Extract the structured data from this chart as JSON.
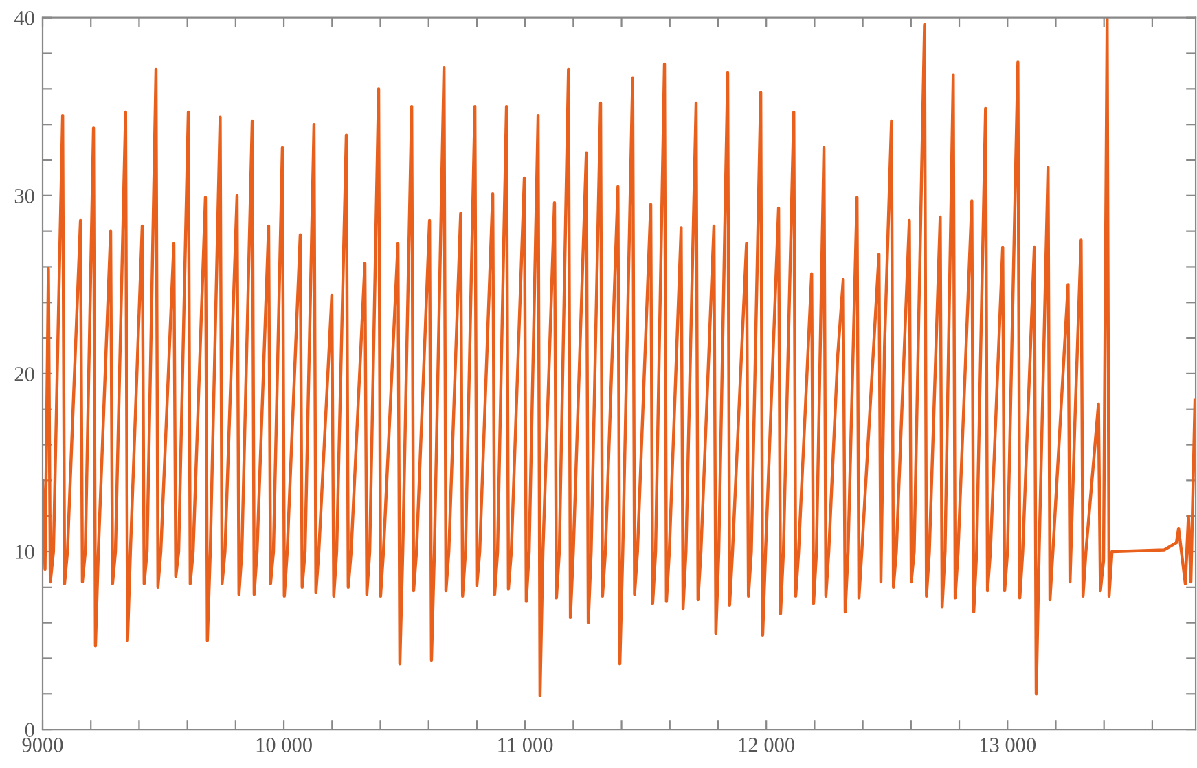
{
  "chart_data": {
    "type": "line",
    "xlim": [
      9000,
      13780
    ],
    "ylim": [
      0,
      40
    ],
    "xticks": [
      9000,
      {
        "value": 9200,
        "label": null
      },
      {
        "value": 9400,
        "label": null
      },
      {
        "value": 9600,
        "label": null
      },
      {
        "value": 9800,
        "label": null
      },
      {
        "value": 10000,
        "label": "10 000"
      },
      {
        "value": 10200,
        "label": null
      },
      {
        "value": 10400,
        "label": null
      },
      {
        "value": 10600,
        "label": null
      },
      {
        "value": 10800,
        "label": null
      },
      {
        "value": 11000,
        "label": "11 000"
      },
      {
        "value": 11200,
        "label": null
      },
      {
        "value": 11400,
        "label": null
      },
      {
        "value": 11600,
        "label": null
      },
      {
        "value": 11800,
        "label": null
      },
      {
        "value": 12000,
        "label": "12 000"
      },
      {
        "value": 12200,
        "label": null
      },
      {
        "value": 12400,
        "label": null
      },
      {
        "value": 12600,
        "label": null
      },
      {
        "value": 12800,
        "label": null
      },
      {
        "value": 13000,
        "label": "13 000"
      },
      {
        "value": 13200,
        "label": null
      },
      {
        "value": 13400,
        "label": null
      },
      {
        "value": 13600,
        "label": null
      }
    ],
    "yticks": [
      0,
      {
        "value": 2,
        "label": null
      },
      {
        "value": 4,
        "label": null
      },
      {
        "value": 6,
        "label": null
      },
      {
        "value": 8,
        "label": null
      },
      10,
      {
        "value": 12,
        "label": null
      },
      {
        "value": 14,
        "label": null
      },
      {
        "value": 16,
        "label": null
      },
      {
        "value": 18,
        "label": null
      },
      20,
      {
        "value": 22,
        "label": null
      },
      {
        "value": 24,
        "label": null
      },
      {
        "value": 26,
        "label": null
      },
      {
        "value": 28,
        "label": null
      },
      30,
      {
        "value": 32,
        "label": null
      },
      {
        "value": 34,
        "label": null
      },
      {
        "value": 36,
        "label": null
      },
      {
        "value": 38,
        "label": null
      },
      40
    ],
    "grid": false,
    "marker": "none",
    "line_style": "solid",
    "series": [
      {
        "color": "#e8601c",
        "x": [
          9000,
          9010,
          9024,
          9032,
          9045,
          9083,
          9091,
          9103,
          9157,
          9165,
          9177,
          9211,
          9219,
          9231,
          9282,
          9290,
          9302,
          9344,
          9352,
          9364,
          9413,
          9421,
          9433,
          9470,
          9478,
          9490,
          9544,
          9552,
          9564,
          9604,
          9612,
          9624,
          9675,
          9683,
          9695,
          9736,
          9744,
          9756,
          9806,
          9814,
          9826,
          9869,
          9877,
          9889,
          9937,
          9945,
          9957,
          9994,
          10002,
          10014,
          10068,
          10076,
          10088,
          10125,
          10133,
          10145,
          10199,
          10207,
          10219,
          10259,
          10267,
          10279,
          10336,
          10344,
          10356,
          10393,
          10401,
          10413,
          10473,
          10481,
          10493,
          10530,
          10538,
          10550,
          10604,
          10612,
          10624,
          10664,
          10672,
          10684,
          10733,
          10741,
          10753,
          10792,
          10800,
          10812,
          10866,
          10874,
          10886,
          10923,
          10931,
          10943,
          10997,
          11005,
          11017,
          11054,
          11062,
          11074,
          11122,
          11130,
          11142,
          11180,
          11188,
          11200,
          11254,
          11262,
          11274,
          11313,
          11321,
          11333,
          11385,
          11393,
          11405,
          11446,
          11454,
          11466,
          11521,
          11529,
          11541,
          11578,
          11586,
          11598,
          11647,
          11655,
          11667,
          11709,
          11717,
          11729,
          11783,
          11791,
          11803,
          11840,
          11848,
          11860,
          11918,
          11926,
          11938,
          11977,
          11985,
          11997,
          12051,
          12059,
          12071,
          12114,
          12122,
          12134,
          12188,
          12196,
          12208,
          12239,
          12247,
          12259,
          12296,
          12319,
          12327,
          12339,
          12376,
          12384,
          12396,
          12467,
          12475,
          12490,
          12519,
          12527,
          12539,
          12593,
          12601,
          12613,
          12656,
          12664,
          12676,
          12721,
          12729,
          12741,
          12775,
          12783,
          12795,
          12852,
          12860,
          12872,
          12909,
          12917,
          12929,
          12980,
          12988,
          13000,
          13043,
          13051,
          13063,
          13111,
          13119,
          13131,
          13168,
          13176,
          13188,
          13251,
          13259,
          13280,
          13305,
          13313,
          13325,
          13377,
          13385,
          13398,
          13413,
          13421,
          13433,
          13650,
          13700,
          13709,
          13737,
          13750,
          13760,
          13777
        ],
        "values": [
          14,
          9,
          25.9,
          8.3,
          10,
          34.5,
          8.2,
          10,
          28.6,
          8.3,
          10,
          33.8,
          4.7,
          10,
          28.0,
          8.2,
          10,
          34.7,
          5.0,
          10,
          28.3,
          8.2,
          10,
          37.1,
          8.0,
          10,
          27.3,
          8.6,
          10,
          34.7,
          8.2,
          10,
          29.9,
          5.0,
          10,
          34.4,
          8.2,
          10,
          30.0,
          7.6,
          10,
          34.2,
          7.6,
          10,
          28.3,
          8.2,
          10,
          32.7,
          7.5,
          10,
          27.8,
          8.0,
          10,
          34.0,
          7.7,
          10,
          24.4,
          7.5,
          10,
          33.4,
          8.0,
          10,
          26.2,
          7.6,
          10,
          36.0,
          7.5,
          10,
          27.3,
          3.7,
          10,
          35.0,
          7.8,
          10,
          28.6,
          3.9,
          10,
          37.2,
          7.8,
          10,
          29.0,
          7.5,
          10,
          35.0,
          8.1,
          10,
          30.1,
          7.6,
          10,
          35.0,
          7.9,
          10,
          31.0,
          7.2,
          10,
          34.5,
          1.9,
          10,
          29.6,
          7.4,
          10,
          37.1,
          6.3,
          10,
          32.4,
          6.0,
          10,
          35.2,
          7.5,
          10,
          30.5,
          3.7,
          10,
          36.6,
          7.6,
          10,
          29.5,
          7.1,
          10,
          37.4,
          7.2,
          10,
          28.2,
          6.8,
          10,
          35.2,
          7.3,
          10,
          28.3,
          5.4,
          10,
          36.9,
          7.0,
          10,
          27.3,
          7.5,
          10,
          35.8,
          5.3,
          10,
          29.3,
          6.5,
          10,
          34.7,
          7.5,
          10,
          25.6,
          7.1,
          10,
          32.7,
          7.5,
          10,
          21,
          25.3,
          6.6,
          10,
          29.9,
          7.4,
          10,
          26.7,
          8.3,
          21.5,
          34.2,
          8.0,
          10,
          28.6,
          8.3,
          10,
          39.6,
          7.5,
          10,
          28.8,
          6.9,
          10,
          36.8,
          7.4,
          10,
          29.7,
          6.6,
          10,
          34.9,
          7.8,
          10,
          27.1,
          7.8,
          10,
          37.5,
          7.4,
          10,
          27.1,
          2.0,
          10,
          31.6,
          7.3,
          10,
          25.0,
          8.3,
          17.6,
          27.5,
          7.5,
          10,
          18.3,
          7.8,
          9.5,
          40,
          7.5,
          10,
          10.1,
          10.5,
          11.3,
          8.2,
          12,
          8.3,
          18.5
        ]
      }
    ]
  }
}
